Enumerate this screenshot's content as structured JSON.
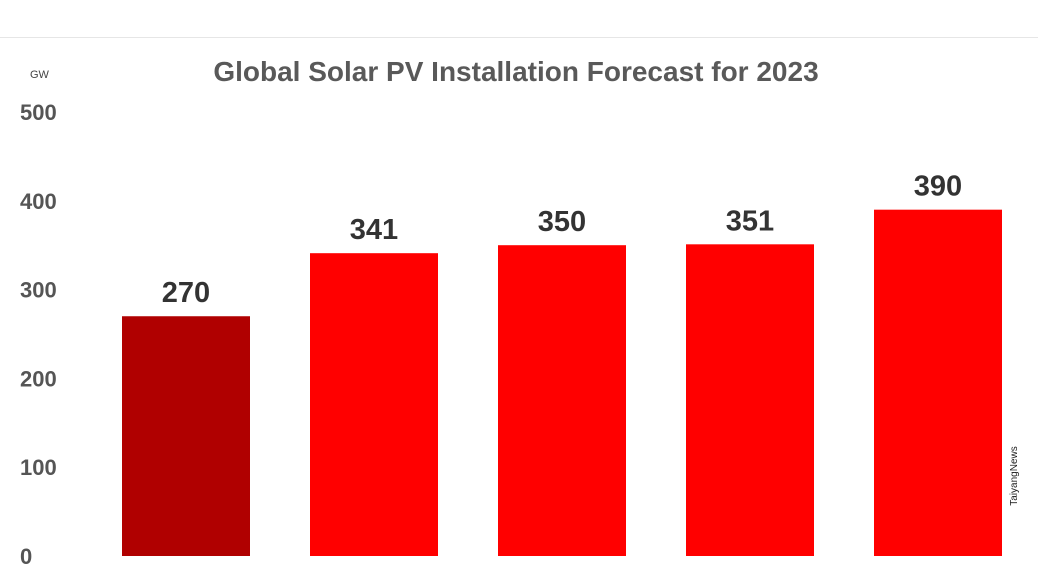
{
  "chart_data": {
    "type": "bar",
    "title": "Global Solar PV Installation Forecast for 2023",
    "unit": "GW",
    "categories": [
      "",
      "",
      "",
      "",
      ""
    ],
    "values": [
      270,
      341,
      350,
      351,
      390
    ],
    "ylim": [
      0,
      500
    ],
    "yticks": [
      0,
      100,
      200,
      300,
      400,
      500
    ],
    "colors": [
      "#b00000",
      "#ff0000",
      "#ff0000",
      "#ff0000",
      "#ff0000"
    ],
    "grid": false,
    "legend": "none"
  },
  "watermark": "TaiyangNews"
}
